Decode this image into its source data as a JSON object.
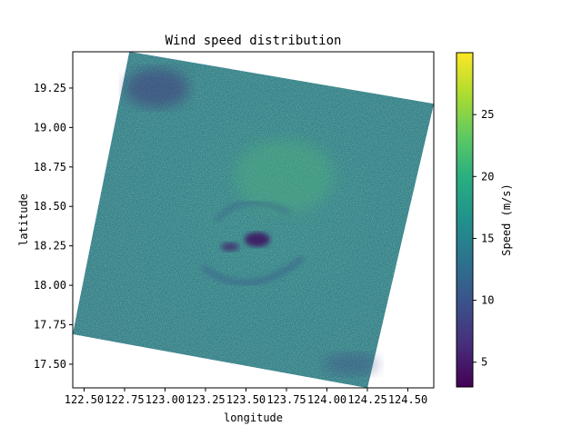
{
  "chart_data": {
    "type": "heatmap",
    "title": "Wind speed distribution",
    "xlabel": "longitude",
    "ylabel": "latitude",
    "xlim": [
      122.43,
      124.66
    ],
    "ylim": [
      17.35,
      19.48
    ],
    "xticks": [
      122.5,
      122.75,
      123.0,
      123.25,
      123.5,
      123.75,
      124.0,
      124.25,
      124.5
    ],
    "xtick_labels": [
      "122.50",
      "122.75",
      "123.00",
      "123.25",
      "123.50",
      "123.75",
      "124.00",
      "124.25",
      "124.50"
    ],
    "yticks": [
      17.5,
      17.75,
      18.0,
      18.25,
      18.5,
      18.75,
      19.0,
      19.25
    ],
    "ytick_labels": [
      "17.50",
      "17.75",
      "18.00",
      "18.25",
      "18.50",
      "18.75",
      "19.00",
      "19.25"
    ],
    "swath_corners": [
      [
        122.78,
        19.48
      ],
      [
        124.66,
        19.15
      ],
      [
        124.25,
        17.35
      ],
      [
        122.43,
        17.69
      ]
    ],
    "storm_center": [
      123.57,
      18.29
    ],
    "colorbar": {
      "label": "Speed (m/s)",
      "colormap": "viridis",
      "range": [
        3,
        30
      ],
      "ticks": [
        5,
        10,
        15,
        20,
        25
      ],
      "tick_labels": [
        "5",
        "10",
        "15",
        "20",
        "25"
      ]
    },
    "grid": false,
    "legend": "none"
  }
}
